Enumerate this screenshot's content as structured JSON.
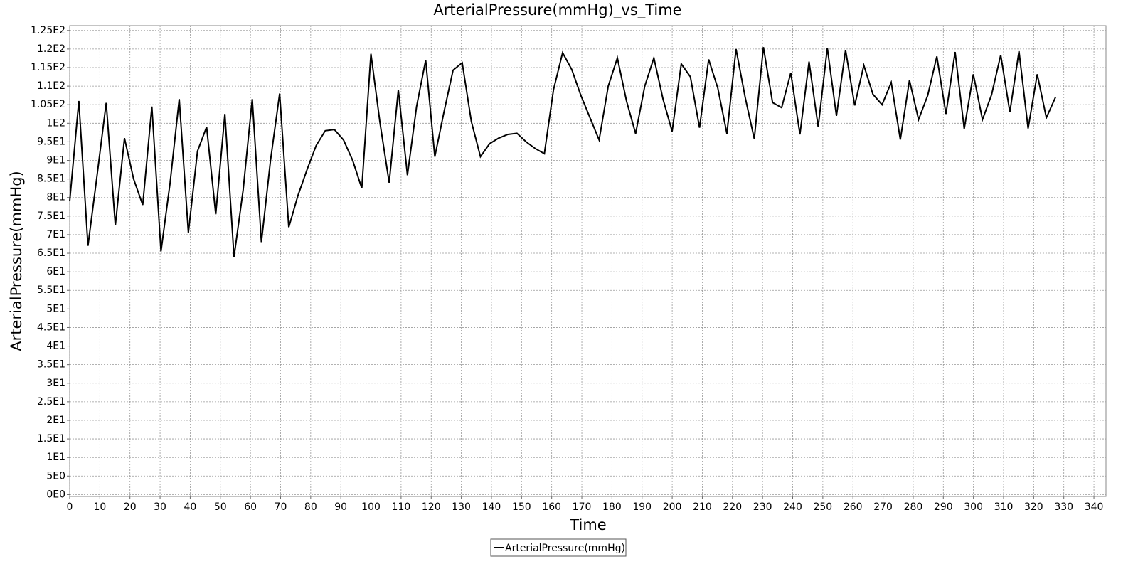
{
  "chart_data": {
    "type": "line",
    "title": "ArterialPressure(mmHg)_vs_Time",
    "x_label": "Time",
    "y_label": "ArterialPressure(mmHg)",
    "xlim": [
      0,
      344
    ],
    "ylim": [
      -0.5,
      126.3
    ],
    "xticks": [
      0,
      10,
      20,
      30,
      40,
      50,
      60,
      70,
      80,
      90,
      100,
      110,
      120,
      130,
      140,
      150,
      160,
      170,
      180,
      190,
      200,
      210,
      220,
      230,
      240,
      250,
      260,
      270,
      280,
      290,
      300,
      310,
      320,
      330,
      340
    ],
    "yticks": [
      {
        "value": 0,
        "label": "0E0"
      },
      {
        "value": 5,
        "label": "5E0"
      },
      {
        "value": 10,
        "label": "1E1"
      },
      {
        "value": 15,
        "label": "1.5E1"
      },
      {
        "value": 20,
        "label": "2E1"
      },
      {
        "value": 25,
        "label": "2.5E1"
      },
      {
        "value": 30,
        "label": "3E1"
      },
      {
        "value": 35,
        "label": "3.5E1"
      },
      {
        "value": 40,
        "label": "4E1"
      },
      {
        "value": 45,
        "label": "4.5E1"
      },
      {
        "value": 50,
        "label": "5E1"
      },
      {
        "value": 55,
        "label": "5.5E1"
      },
      {
        "value": 60,
        "label": "6E1"
      },
      {
        "value": 65,
        "label": "6.5E1"
      },
      {
        "value": 70,
        "label": "7E1"
      },
      {
        "value": 75,
        "label": "7.5E1"
      },
      {
        "value": 80,
        "label": "8E1"
      },
      {
        "value": 85,
        "label": "8.5E1"
      },
      {
        "value": 90,
        "label": "9E1"
      },
      {
        "value": 95,
        "label": "9.5E1"
      },
      {
        "value": 100,
        "label": "1E2"
      },
      {
        "value": 105,
        "label": "1.05E2"
      },
      {
        "value": 110,
        "label": "1.1E2"
      },
      {
        "value": 115,
        "label": "1.15E2"
      },
      {
        "value": 120,
        "label": "1.2E2"
      },
      {
        "value": 125,
        "label": "1.25E2"
      }
    ],
    "grid": true,
    "x": [
      0,
      3.03,
      6.06,
      9.09,
      12.12,
      15.15,
      18.18,
      21.21,
      24.24,
      27.27,
      30.3,
      33.33,
      36.36,
      39.39,
      42.42,
      45.45,
      48.48,
      51.51,
      54.54,
      57.57,
      60.6,
      63.63,
      66.66,
      69.69,
      72.72,
      75.75,
      78.78,
      81.81,
      84.84,
      87.87,
      90.9,
      93.93,
      96.96,
      99.99,
      103.02,
      106.05,
      109.08,
      112.11,
      115.14,
      118.17,
      121.2,
      124.23,
      127.26,
      130.29,
      133.32,
      136.35,
      139.38,
      142.41,
      145.44,
      148.47,
      151.5,
      154.53,
      157.56,
      160.59,
      163.62,
      166.65,
      169.68,
      172.71,
      175.74,
      178.77,
      181.8,
      184.83,
      187.86,
      190.89,
      193.92,
      196.95,
      199.98,
      203.01,
      206.04,
      209.07,
      212.1,
      215.13,
      218.16,
      221.19,
      224.22,
      227.25,
      230.28,
      233.31,
      236.34,
      239.37,
      242.4,
      245.43,
      248.46,
      251.49,
      254.52,
      257.55,
      260.58,
      263.61,
      266.64,
      269.67,
      272.7,
      275.73,
      278.76,
      281.79,
      284.82,
      287.85,
      290.88,
      293.91,
      296.94,
      299.97,
      303,
      306.03,
      309.06,
      312.09,
      315.12,
      318.15,
      321.18,
      324.21,
      327.24
    ],
    "series": [
      {
        "name": "ArterialPressure(mmHg)",
        "color": "#000000",
        "values": [
          79,
          106,
          67,
          86,
          105.5,
          72.5,
          96,
          85,
          78,
          104.5,
          65.5,
          84,
          106.5,
          70.5,
          92.5,
          99,
          75.5,
          102.5,
          64,
          82,
          106.5,
          68,
          90,
          108,
          72,
          80.5,
          87.5,
          94,
          98,
          98.3,
          95.5,
          90,
          82.5,
          118.7,
          100,
          84,
          109,
          86,
          104.5,
          117,
          91,
          103,
          114.3,
          116.3,
          100.5,
          91,
          94.5,
          96,
          97,
          97.3,
          95,
          93.2,
          91.8,
          109,
          119,
          114.5,
          107.5,
          101.5,
          95.5,
          110,
          117.6,
          106,
          97.2,
          110,
          117.6,
          106.5,
          97.8,
          116,
          112.5,
          98.8,
          117.2,
          109.5,
          97.2,
          120,
          107,
          95.8,
          120.5,
          105.6,
          104.2,
          113.6,
          97,
          116.6,
          99,
          120.3,
          102,
          119.7,
          104.8,
          115.6,
          107.8,
          105,
          111,
          95.6,
          111.6,
          101,
          107.5,
          118,
          102.5,
          119.2,
          98.5,
          113.2,
          101,
          107.7,
          118.4,
          103,
          119.4,
          98.6,
          113.2,
          101.5,
          107
        ]
      }
    ]
  }
}
